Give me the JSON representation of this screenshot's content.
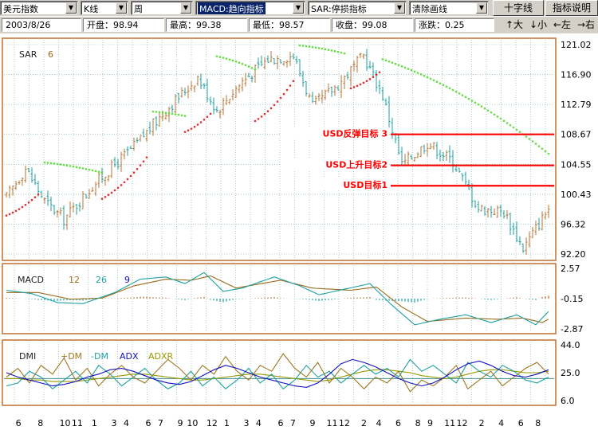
{
  "toolbar": {
    "index_select": "美元指数",
    "chart_type_select": "K线",
    "period_select": "周",
    "indicator_select": "MACD:趋向指标",
    "overlay_select": "SAR:停损指标",
    "draw_select": "清除画线",
    "crosshair_button": "十字线",
    "help_button": "指标说明"
  },
  "info": {
    "date": "2003/8/26",
    "open": "开盘：98.94",
    "high": "最高：99.38",
    "low": "最低：98.57",
    "close": "收盘：99.08",
    "change": "涨跌：0.25"
  },
  "nav": {
    "up": "↑大",
    "down": "↓小",
    "left": "←左",
    "right": "→右"
  },
  "colors": {
    "panel_border": "#bf6f2f",
    "up_candle": "#b87333",
    "down_candle": "#1f9f9f",
    "sar_above": "#66dd44",
    "sar_below": "#e03030",
    "target_line": "#ff0000",
    "macd_line": "#1fa0a0",
    "signal_line": "#9a6a1a",
    "plus_dm": "#a07820",
    "minus_dm": "#20a0a0",
    "adx": "#1010c0",
    "adxr": "#999900"
  },
  "chart_data": [
    {
      "type": "candlestick",
      "label": "SAR",
      "param": "6",
      "ylim": [
        92.2,
        121.02
      ],
      "ytick_labels": [
        "121.02",
        "116.90",
        "112.79",
        "108.67",
        "104.55",
        "100.43",
        "96.32",
        "92.20"
      ],
      "ytick_values": [
        121.02,
        116.9,
        112.79,
        108.67,
        104.55,
        100.43,
        96.32,
        92.2
      ],
      "anchors": [
        {
          "i": 0,
          "v": 100.0
        },
        {
          "i": 6,
          "v": 104.0
        },
        {
          "i": 12,
          "v": 99.5
        },
        {
          "i": 18,
          "v": 97.0
        },
        {
          "i": 28,
          "v": 102.0
        },
        {
          "i": 40,
          "v": 107.0
        },
        {
          "i": 50,
          "v": 112.0
        },
        {
          "i": 60,
          "v": 116.5
        },
        {
          "i": 66,
          "v": 112.0
        },
        {
          "i": 74,
          "v": 116.0
        },
        {
          "i": 82,
          "v": 119.0
        },
        {
          "i": 90,
          "v": 119.5
        },
        {
          "i": 96,
          "v": 112.5
        },
        {
          "i": 104,
          "v": 115.5
        },
        {
          "i": 112,
          "v": 119.5
        },
        {
          "i": 118,
          "v": 114.0
        },
        {
          "i": 124,
          "v": 104.5
        },
        {
          "i": 132,
          "v": 107.5
        },
        {
          "i": 140,
          "v": 105.0
        },
        {
          "i": 148,
          "v": 98.5
        },
        {
          "i": 156,
          "v": 98.0
        },
        {
          "i": 162,
          "v": 93.0
        },
        {
          "i": 170,
          "v": 98.5
        }
      ],
      "count": 171,
      "sar_above_segments": [
        {
          "i0": 12,
          "v0": 104.8,
          "i1": 30,
          "v1": 103.4
        },
        {
          "i0": 46,
          "v0": 111.8,
          "i1": 56,
          "v1": 111.2
        },
        {
          "i0": 66,
          "v0": 119.4,
          "i1": 78,
          "v1": 117.6
        },
        {
          "i0": 92,
          "v0": 120.9,
          "i1": 106,
          "v1": 119.8
        },
        {
          "i0": 118,
          "v0": 119.0,
          "i1": 170,
          "v1": 106.0
        }
      ],
      "sar_below_segments": [
        {
          "i0": 0,
          "v0": 97.5,
          "i1": 10,
          "v1": 100.4
        },
        {
          "i0": 30,
          "v0": 99.8,
          "i1": 44,
          "v1": 105.5
        },
        {
          "i0": 56,
          "v0": 109.0,
          "i1": 64,
          "v1": 111.5
        },
        {
          "i0": 78,
          "v0": 110.5,
          "i1": 90,
          "v1": 116.0
        },
        {
          "i0": 108,
          "v0": 115.0,
          "i1": 117,
          "v1": 117.2
        }
      ],
      "targets": [
        {
          "label": "USD反弹目标 3",
          "value": 108.67
        },
        {
          "label": "USD上升目标2",
          "value": 104.4
        },
        {
          "label": "USD目标1",
          "value": 101.6
        }
      ]
    },
    {
      "type": "line",
      "label": "MACD",
      "params": [
        "12",
        "26",
        "9"
      ],
      "ylim": [
        -2.87,
        2.57
      ],
      "ytick_labels": [
        "2.57",
        "-0.15",
        "-2.87"
      ],
      "ytick_values": [
        2.57,
        -0.15,
        -2.87
      ],
      "macd_anchors": [
        {
          "i": 0,
          "v": 0.6
        },
        {
          "i": 8,
          "v": 0.3
        },
        {
          "i": 16,
          "v": -0.5
        },
        {
          "i": 24,
          "v": -0.6
        },
        {
          "i": 34,
          "v": 0.4
        },
        {
          "i": 42,
          "v": 1.6
        },
        {
          "i": 50,
          "v": 1.8
        },
        {
          "i": 56,
          "v": 1.2
        },
        {
          "i": 62,
          "v": 2.2
        },
        {
          "i": 68,
          "v": 0.5
        },
        {
          "i": 74,
          "v": 0.8
        },
        {
          "i": 84,
          "v": 1.8
        },
        {
          "i": 92,
          "v": 1.0
        },
        {
          "i": 98,
          "v": 0.2
        },
        {
          "i": 106,
          "v": 0.7
        },
        {
          "i": 114,
          "v": 1.2
        },
        {
          "i": 120,
          "v": -0.5
        },
        {
          "i": 128,
          "v": -2.5
        },
        {
          "i": 136,
          "v": -2.0
        },
        {
          "i": 144,
          "v": -1.6
        },
        {
          "i": 152,
          "v": -2.3
        },
        {
          "i": 160,
          "v": -1.6
        },
        {
          "i": 166,
          "v": -2.5
        },
        {
          "i": 170,
          "v": -1.3
        }
      ],
      "signal_anchors": [
        {
          "i": 0,
          "v": 0.4
        },
        {
          "i": 10,
          "v": 0.4
        },
        {
          "i": 20,
          "v": -0.2
        },
        {
          "i": 30,
          "v": -0.1
        },
        {
          "i": 40,
          "v": 1.0
        },
        {
          "i": 50,
          "v": 1.6
        },
        {
          "i": 58,
          "v": 1.5
        },
        {
          "i": 64,
          "v": 1.9
        },
        {
          "i": 72,
          "v": 0.8
        },
        {
          "i": 86,
          "v": 1.5
        },
        {
          "i": 96,
          "v": 0.8
        },
        {
          "i": 108,
          "v": 0.6
        },
        {
          "i": 116,
          "v": 0.9
        },
        {
          "i": 124,
          "v": -0.9
        },
        {
          "i": 132,
          "v": -2.2
        },
        {
          "i": 144,
          "v": -1.9
        },
        {
          "i": 154,
          "v": -2.0
        },
        {
          "i": 162,
          "v": -1.9
        },
        {
          "i": 168,
          "v": -2.3
        },
        {
          "i": 170,
          "v": -2.0
        }
      ]
    },
    {
      "type": "line",
      "label": "DMI",
      "series_labels": [
        "+DM",
        "-DM",
        "ADX",
        "ADXR"
      ],
      "ylim": [
        6.0,
        44.0
      ],
      "ytick_labels": [
        "44.0",
        "25.0",
        "6.0"
      ],
      "ytick_values": [
        44.0,
        25.0,
        6.0
      ],
      "mid_line": 21.0,
      "plus_dm": [
        22,
        28,
        18,
        30,
        24,
        35,
        20,
        28,
        16,
        24,
        30,
        22,
        18,
        26,
        34,
        28,
        20,
        30,
        24,
        36,
        26,
        20,
        30,
        26,
        38,
        28,
        22,
        32,
        18,
        28,
        22,
        14,
        22,
        18,
        26,
        12,
        20,
        16,
        22,
        30,
        14,
        20,
        26,
        16,
        22,
        28,
        32,
        24
      ],
      "minus_dm": [
        16,
        18,
        26,
        22,
        14,
        20,
        26,
        18,
        30,
        24,
        16,
        22,
        28,
        20,
        14,
        18,
        26,
        16,
        22,
        14,
        20,
        28,
        18,
        24,
        14,
        20,
        30,
        22,
        26,
        18,
        24,
        30,
        24,
        28,
        22,
        34,
        26,
        30,
        24,
        18,
        32,
        26,
        22,
        30,
        26,
        20,
        18,
        22
      ],
      "adx": [
        25,
        22,
        20,
        18,
        16,
        17,
        19,
        22,
        24,
        27,
        28,
        26,
        23,
        20,
        18,
        17,
        19,
        23,
        27,
        30,
        28,
        25,
        22,
        20,
        18,
        16,
        15,
        18,
        24,
        31,
        34,
        32,
        29,
        25,
        21,
        18,
        16,
        18,
        22,
        27,
        31,
        33,
        30,
        26,
        23,
        22,
        24,
        27
      ],
      "adxr": [
        21,
        21,
        20,
        20,
        19,
        19,
        19,
        20,
        21,
        22,
        23,
        24,
        24,
        23,
        22,
        21,
        20,
        20,
        21,
        22,
        23,
        24,
        24,
        23,
        22,
        21,
        20,
        19,
        20,
        22,
        24,
        26,
        27,
        27,
        26,
        25,
        23,
        22,
        21,
        22,
        24,
        26,
        27,
        27,
        26,
        25,
        25,
        26
      ]
    }
  ],
  "x_axis": {
    "tick_labels": [
      "6",
      "8",
      "10",
      "11",
      "1",
      "3",
      "4",
      "6",
      "7",
      "9",
      "10",
      "12",
      "1",
      "3",
      "4",
      "6",
      "7",
      "9",
      "11",
      "12",
      "2",
      "4",
      "6",
      "8",
      "9",
      "11",
      "12",
      "2",
      "4",
      "6",
      "8"
    ],
    "tick_index": [
      1,
      10,
      20,
      25,
      32,
      40,
      45,
      54,
      59,
      67,
      72,
      80,
      86,
      94,
      99,
      108,
      113,
      121,
      129,
      134,
      142,
      148,
      156,
      164,
      169,
      177,
      182,
      190,
      198,
      206,
      213
    ]
  }
}
